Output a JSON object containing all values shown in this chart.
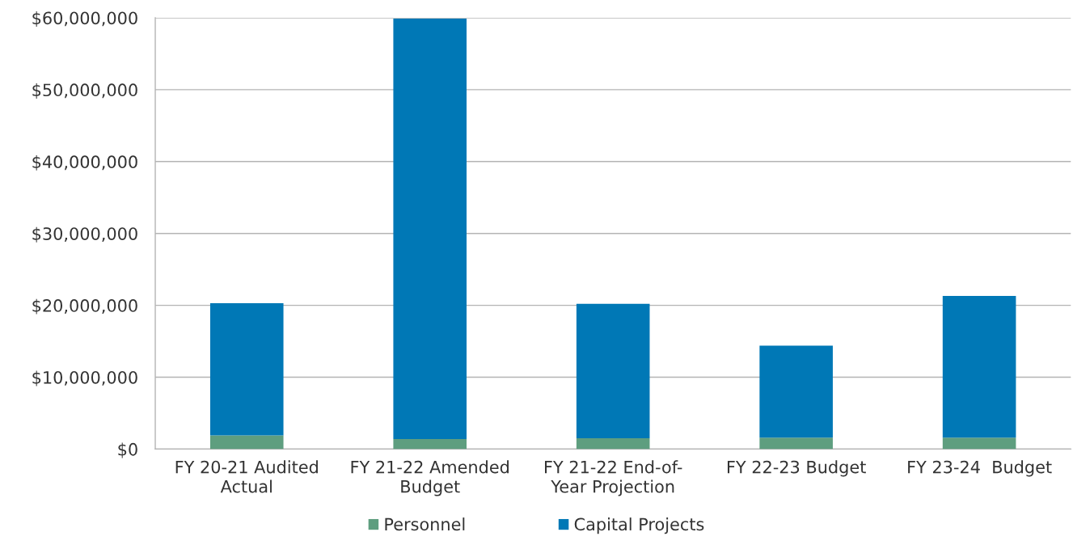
{
  "chart_data": {
    "type": "bar",
    "stacked": true,
    "categories": [
      "FY 20-21 Audited\nActual",
      "FY 21-22 Amended\nBudget",
      "FY 21-22 End-of-\nYear Projection",
      "FY 22-23 Budget",
      "FY 23-24  Budget"
    ],
    "series": [
      {
        "name": "Personnel",
        "color": "#5e9e7f",
        "values": [
          1900000,
          1400000,
          1500000,
          1600000,
          1600000
        ]
      },
      {
        "name": "Capital Projects",
        "color": "#0078b6",
        "values": [
          18400000,
          58500000,
          18700000,
          12800000,
          19700000
        ]
      }
    ],
    "ylim": [
      0,
      60000000
    ],
    "yticks": [
      {
        "value": 0,
        "label": "$0"
      },
      {
        "value": 10000000,
        "label": "$10,000,000"
      },
      {
        "value": 20000000,
        "label": "$20,000,000"
      },
      {
        "value": 30000000,
        "label": "$30,000,000"
      },
      {
        "value": 40000000,
        "label": "$40,000,000"
      },
      {
        "value": 50000000,
        "label": "$50,000,000"
      },
      {
        "value": 60000000,
        "label": "$60,000,000"
      }
    ],
    "grid": "y",
    "legend": "bottom"
  }
}
